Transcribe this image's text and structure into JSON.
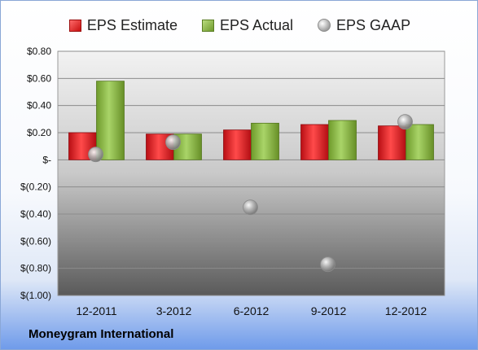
{
  "chart_data": {
    "type": "bar",
    "categories": [
      "12-2011",
      "3-2012",
      "6-2012",
      "9-2012",
      "12-2012"
    ],
    "series": [
      {
        "name": "EPS Estimate",
        "type": "bar",
        "values": [
          0.2,
          0.19,
          0.22,
          0.26,
          0.25
        ],
        "color": "#d9232a"
      },
      {
        "name": "EPS Actual",
        "type": "bar",
        "values": [
          0.58,
          0.19,
          0.27,
          0.29,
          0.26
        ],
        "color": "#8fbc45"
      },
      {
        "name": "EPS GAAP",
        "type": "scatter",
        "values": [
          0.04,
          0.13,
          -0.35,
          -0.77,
          0.28
        ],
        "color": "#a6a6a6"
      }
    ],
    "y_ticks": [
      0.8,
      0.6,
      0.4,
      0.2,
      0,
      -0.2,
      -0.4,
      -0.6,
      -0.8,
      -1.0
    ],
    "y_tick_labels": [
      "$0.80",
      "$0.60",
      "$0.40",
      "$0.20",
      "$-",
      "$(0.20)",
      "$(0.40)",
      "$(0.60)",
      "$(0.80)",
      "$(1.00)"
    ],
    "ylim": [
      -1.0,
      0.8
    ],
    "grid": true,
    "legend_position": "top",
    "footer": "Moneygram International"
  }
}
